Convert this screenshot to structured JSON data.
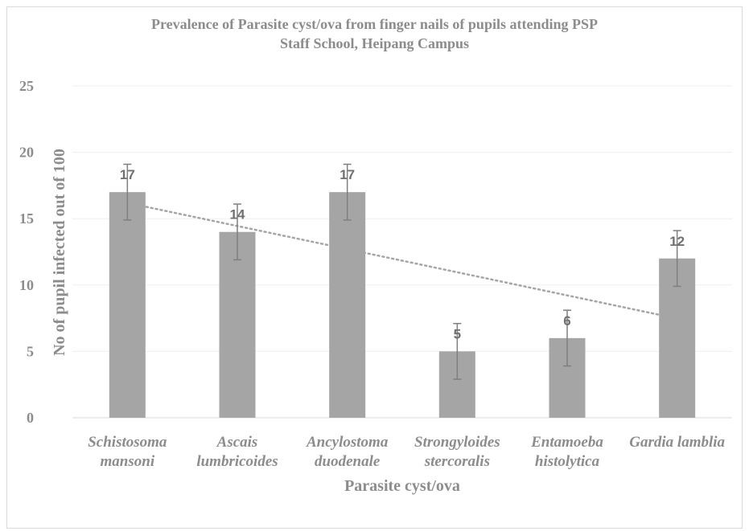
{
  "chart_data": {
    "type": "bar",
    "title": "Prevalence of Parasite cyst/ova from finger nails of pupils attending PSP Staff School, Heipang Campus",
    "title_lines": [
      "Prevalence of Parasite cyst/ova from finger nails of pupils attending PSP",
      "Staff School, Heipang Campus"
    ],
    "xlabel": "Parasite cyst/ova",
    "ylabel": "No of  pupil infected out of 100",
    "categories": [
      [
        "Schistosoma",
        "mansoni"
      ],
      [
        "Ascais",
        "lumbricoides"
      ],
      [
        "Ancylostoma",
        "duodenale"
      ],
      [
        "Strongyloides",
        "stercoralis"
      ],
      [
        "Entamoeba",
        "histolytica"
      ],
      [
        "Gardia lamblia"
      ]
    ],
    "values": [
      17,
      14,
      17,
      5,
      6,
      12
    ],
    "data_labels": [
      "17",
      "14",
      "17",
      "5",
      "6",
      "12"
    ],
    "error_bars": 2.1,
    "trendline": "linear",
    "ylim": [
      0,
      25
    ],
    "yticks": [
      "0",
      "5",
      "10",
      "15",
      "20",
      "25"
    ],
    "grid": true,
    "legend": "none",
    "colors": {
      "bar": "#a5a5a5",
      "error": "#7f7f7f",
      "trend": "#a5a5a5",
      "grid": "#efefef",
      "text": "#8c8c8c"
    }
  }
}
